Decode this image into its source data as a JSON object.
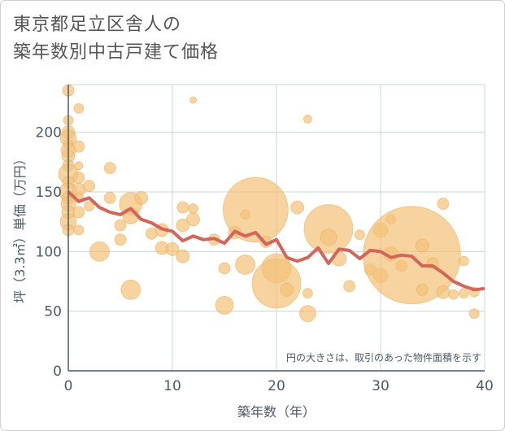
{
  "title_line1": "東京都足立区舎人の",
  "title_line2": "築年数別中古戸建て価格",
  "chart_data": {
    "type": "scatter",
    "xlabel": "築年数（年）",
    "ylabel": "坪（3.3㎡）単価（万円）",
    "xlim": [
      0,
      40
    ],
    "ylim": [
      0,
      240
    ],
    "xticks": [
      0,
      10,
      20,
      30,
      40
    ],
    "yticks": [
      0,
      50,
      100,
      150,
      200
    ],
    "grid": true,
    "annotation": "円の大きさは、取引のあった物件面積を示す",
    "colors": {
      "bubble": "#f2c27a",
      "bubble_stroke": "#e9ab57",
      "line": "#d2665a",
      "grid": "#c9d4dc",
      "axis": "#4a5a66"
    },
    "bubbles": [
      {
        "x": 0,
        "y": 235,
        "s": 7
      },
      {
        "x": 0,
        "y": 210,
        "s": 6
      },
      {
        "x": 0,
        "y": 200,
        "s": 8
      },
      {
        "x": 0,
        "y": 195,
        "s": 10
      },
      {
        "x": 0,
        "y": 190,
        "s": 6
      },
      {
        "x": 0,
        "y": 185,
        "s": 9
      },
      {
        "x": 0,
        "y": 180,
        "s": 8
      },
      {
        "x": 0,
        "y": 172,
        "s": 7
      },
      {
        "x": 0,
        "y": 165,
        "s": 12
      },
      {
        "x": 0,
        "y": 158,
        "s": 7
      },
      {
        "x": 0,
        "y": 150,
        "s": 11
      },
      {
        "x": 0,
        "y": 145,
        "s": 8
      },
      {
        "x": 0,
        "y": 140,
        "s": 9
      },
      {
        "x": 0,
        "y": 133,
        "s": 8
      },
      {
        "x": 0,
        "y": 125,
        "s": 10
      },
      {
        "x": 0,
        "y": 118,
        "s": 7
      },
      {
        "x": 1,
        "y": 220,
        "s": 6
      },
      {
        "x": 1,
        "y": 188,
        "s": 7
      },
      {
        "x": 1,
        "y": 172,
        "s": 5
      },
      {
        "x": 1,
        "y": 162,
        "s": 7
      },
      {
        "x": 1,
        "y": 152,
        "s": 8
      },
      {
        "x": 1,
        "y": 145,
        "s": 6
      },
      {
        "x": 1,
        "y": 133,
        "s": 7
      },
      {
        "x": 1,
        "y": 118,
        "s": 6
      },
      {
        "x": 2,
        "y": 155,
        "s": 7
      },
      {
        "x": 2,
        "y": 138,
        "s": 6
      },
      {
        "x": 3,
        "y": 100,
        "s": 12
      },
      {
        "x": 4,
        "y": 170,
        "s": 7
      },
      {
        "x": 4,
        "y": 145,
        "s": 7
      },
      {
        "x": 5,
        "y": 122,
        "s": 7
      },
      {
        "x": 5,
        "y": 110,
        "s": 7
      },
      {
        "x": 6,
        "y": 140,
        "s": 14
      },
      {
        "x": 6,
        "y": 130,
        "s": 10
      },
      {
        "x": 6,
        "y": 68,
        "s": 12
      },
      {
        "x": 7,
        "y": 145,
        "s": 8
      },
      {
        "x": 8,
        "y": 115,
        "s": 7
      },
      {
        "x": 9,
        "y": 118,
        "s": 8
      },
      {
        "x": 9,
        "y": 103,
        "s": 8
      },
      {
        "x": 10,
        "y": 102,
        "s": 8
      },
      {
        "x": 11,
        "y": 137,
        "s": 7
      },
      {
        "x": 11,
        "y": 122,
        "s": 8
      },
      {
        "x": 11,
        "y": 96,
        "s": 8
      },
      {
        "x": 12,
        "y": 227,
        "s": 4
      },
      {
        "x": 12,
        "y": 136,
        "s": 6
      },
      {
        "x": 12,
        "y": 127,
        "s": 8
      },
      {
        "x": 14,
        "y": 110,
        "s": 7
      },
      {
        "x": 15,
        "y": 86,
        "s": 7
      },
      {
        "x": 15,
        "y": 55,
        "s": 11
      },
      {
        "x": 16,
        "y": 116,
        "s": 8
      },
      {
        "x": 17,
        "y": 131,
        "s": 6
      },
      {
        "x": 17,
        "y": 89,
        "s": 12
      },
      {
        "x": 18,
        "y": 135,
        "s": 40
      },
      {
        "x": 19,
        "y": 108,
        "s": 7
      },
      {
        "x": 20,
        "y": 86,
        "s": 18
      },
      {
        "x": 20,
        "y": 73,
        "s": 30
      },
      {
        "x": 21,
        "y": 68,
        "s": 8
      },
      {
        "x": 22,
        "y": 137,
        "s": 8
      },
      {
        "x": 23,
        "y": 211,
        "s": 5
      },
      {
        "x": 23,
        "y": 65,
        "s": 6
      },
      {
        "x": 23,
        "y": 48,
        "s": 10
      },
      {
        "x": 25,
        "y": 119,
        "s": 30
      },
      {
        "x": 25,
        "y": 112,
        "s": 10
      },
      {
        "x": 26,
        "y": 94,
        "s": 9
      },
      {
        "x": 27,
        "y": 71,
        "s": 7
      },
      {
        "x": 28,
        "y": 114,
        "s": 6
      },
      {
        "x": 29,
        "y": 85,
        "s": 7
      },
      {
        "x": 30,
        "y": 118,
        "s": 9
      },
      {
        "x": 30,
        "y": 80,
        "s": 9
      },
      {
        "x": 31,
        "y": 127,
        "s": 6
      },
      {
        "x": 31,
        "y": 98,
        "s": 9
      },
      {
        "x": 32,
        "y": 88,
        "s": 7
      },
      {
        "x": 33,
        "y": 97,
        "s": 60
      },
      {
        "x": 34,
        "y": 105,
        "s": 8
      },
      {
        "x": 34,
        "y": 68,
        "s": 7
      },
      {
        "x": 35,
        "y": 90,
        "s": 7
      },
      {
        "x": 36,
        "y": 140,
        "s": 7
      },
      {
        "x": 36,
        "y": 66,
        "s": 8
      },
      {
        "x": 37,
        "y": 64,
        "s": 6
      },
      {
        "x": 38,
        "y": 92,
        "s": 6
      },
      {
        "x": 38,
        "y": 65,
        "s": 6
      },
      {
        "x": 39,
        "y": 66,
        "s": 6
      },
      {
        "x": 39,
        "y": 48,
        "s": 6
      }
    ],
    "trend_line": {
      "x": [
        0,
        1,
        2,
        3,
        4,
        5,
        6,
        7,
        8,
        9,
        10,
        11,
        12,
        13,
        14,
        15,
        16,
        17,
        18,
        19,
        20,
        21,
        22,
        23,
        24,
        25,
        26,
        27,
        28,
        29,
        30,
        31,
        32,
        33,
        34,
        35,
        36,
        37,
        38,
        39,
        40
      ],
      "y": [
        150,
        142,
        145,
        137,
        133,
        131,
        136,
        127,
        124,
        119,
        117,
        109,
        113,
        110,
        111,
        107,
        117,
        113,
        116,
        106,
        110,
        95,
        92,
        95,
        103,
        90,
        102,
        101,
        94,
        101,
        100,
        95,
        97,
        96,
        88,
        88,
        82,
        75,
        71,
        68,
        69
      ]
    }
  }
}
